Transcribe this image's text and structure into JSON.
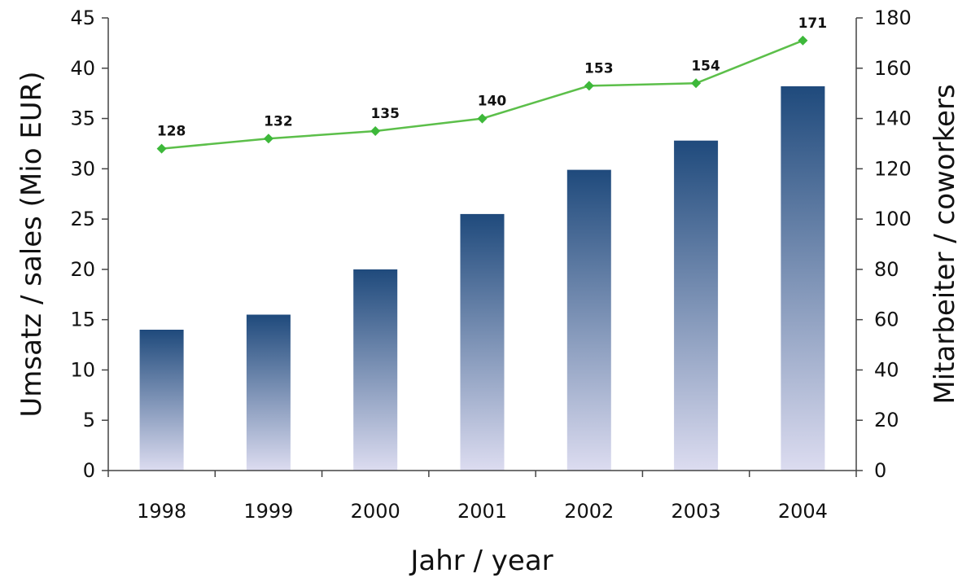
{
  "chart_data": {
    "type": "bar",
    "categories": [
      "1998",
      "1999",
      "2000",
      "2001",
      "2002",
      "2003",
      "2004"
    ],
    "series": [
      {
        "name": "",
        "type": "bar",
        "axis": "left",
        "values": [
          14,
          15.5,
          20,
          25.5,
          29.9,
          32.8,
          38.2
        ]
      },
      {
        "name": "",
        "type": "line",
        "axis": "right",
        "values": [
          128,
          132,
          135,
          140,
          153,
          154,
          171
        ],
        "labels": [
          "128",
          "132",
          "135",
          "140",
          "153",
          "154",
          "171"
        ]
      }
    ],
    "xlabel": "Jahr / year",
    "ylabel": "Umsatz / sales (Mio EUR)",
    "y2label": "Mitarbeiter / coworkers",
    "ylim": [
      0,
      45
    ],
    "y2lim": [
      0,
      180
    ],
    "yticks": [
      "0",
      "5",
      "10",
      "15",
      "20",
      "25",
      "30",
      "35",
      "40",
      "45"
    ],
    "y2ticks": [
      "0",
      "20",
      "40",
      "60",
      "80",
      "100",
      "120",
      "140",
      "160",
      "180"
    ],
    "grid": false,
    "legend": "none",
    "colors": {
      "bar_top": "#1f4a7c",
      "bar_bottom": "#dcdcf0",
      "line": "#5cbf4a",
      "marker": "#3db83a"
    }
  }
}
